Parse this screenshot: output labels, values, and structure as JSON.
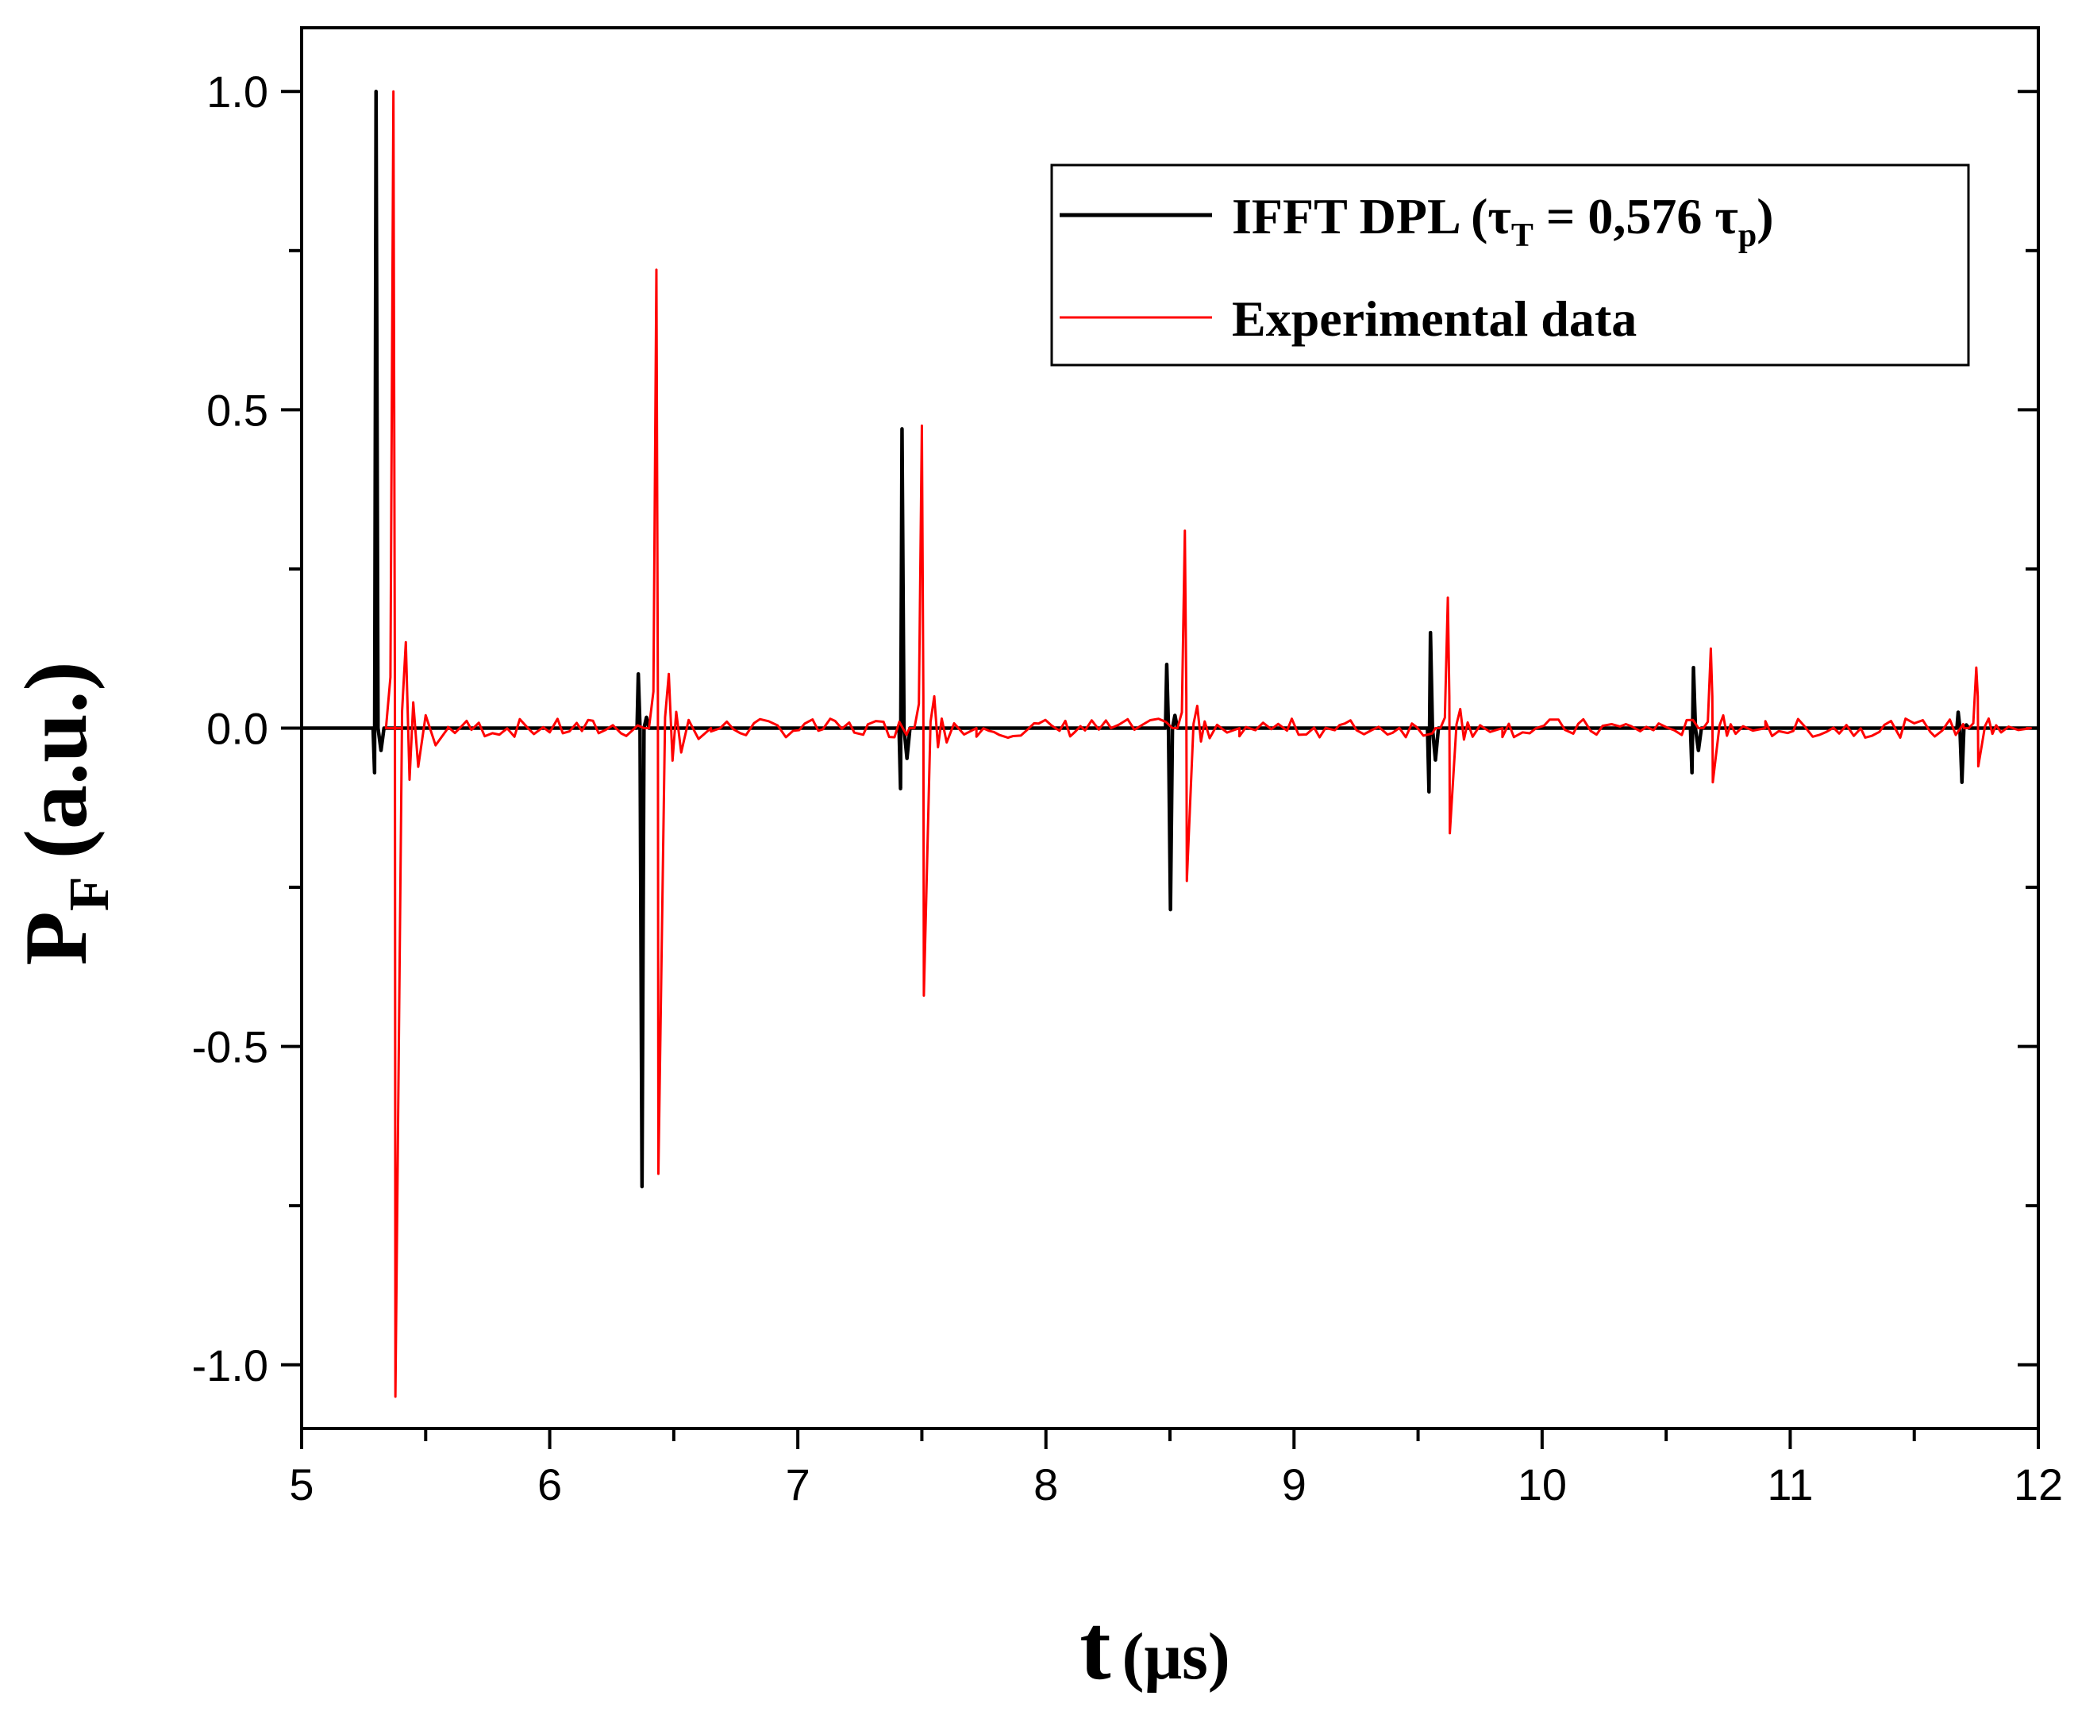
{
  "chart_data": {
    "type": "line",
    "title": "",
    "xlabel": {
      "main": "t",
      "unit": "(μs)"
    },
    "ylabel": {
      "main": "P",
      "sub": "F",
      "unit": "(a.u.)"
    },
    "xlim": [
      5,
      12
    ],
    "ylim": [
      -1.1,
      1.1
    ],
    "x_ticks": [
      5,
      6,
      7,
      8,
      9,
      10,
      11,
      12
    ],
    "x_tick_labels": [
      "5",
      "6",
      "7",
      "8",
      "9",
      "10",
      "11",
      "12"
    ],
    "y_ticks": [
      1.0,
      0.5,
      0.0,
      -0.5,
      -1.0
    ],
    "y_tick_labels": [
      "1.0",
      "0.5",
      "0.0",
      "-0.5",
      "-1.0"
    ],
    "legend_position": "top-right",
    "series": [
      {
        "name": "IFFT DPL",
        "legend": {
          "pre": "IFFT DPL (",
          "tau1": "τ",
          "sub1": "T",
          "mid": " = 0,576 ",
          "tau2": "τ",
          "sub2": "p",
          "post": ")"
        },
        "color": "#000000",
        "pulses": [
          {
            "t": 5.3,
            "pos": 1.0,
            "neg": -0.07
          },
          {
            "t": 6.36,
            "pos": 0.085,
            "neg": -0.72
          },
          {
            "t": 7.42,
            "pos": 0.47,
            "neg": -0.095
          },
          {
            "t": 8.49,
            "pos": 0.1,
            "neg": -0.285
          },
          {
            "t": 9.55,
            "pos": 0.15,
            "neg": -0.1
          },
          {
            "t": 10.61,
            "pos": 0.095,
            "neg": -0.07
          },
          {
            "t": 11.68,
            "pos": 0.025,
            "neg": -0.085
          }
        ]
      },
      {
        "name": "Experimental data",
        "color": "#ff0000",
        "pulses": [
          {
            "t": 5.37,
            "pos": 1.0,
            "neg": -1.05,
            "ring": 0.135
          },
          {
            "t": 6.43,
            "pos": 0.72,
            "neg": -0.7,
            "ring": 0.085
          },
          {
            "t": 7.5,
            "pos": 0.475,
            "neg": -0.42,
            "ring": 0.05
          },
          {
            "t": 8.56,
            "pos": 0.31,
            "neg": -0.24,
            "ring": 0.035
          },
          {
            "t": 9.62,
            "pos": 0.205,
            "neg": -0.165,
            "ring": 0.03
          },
          {
            "t": 10.68,
            "pos": 0.125,
            "neg": -0.085,
            "ring": 0.02
          },
          {
            "t": 11.75,
            "pos": 0.095,
            "neg": -0.06,
            "ring": 0.015
          }
        ]
      }
    ]
  }
}
